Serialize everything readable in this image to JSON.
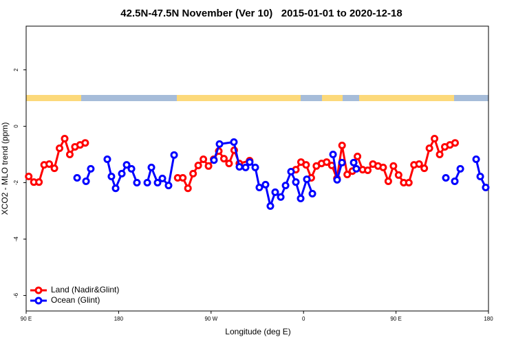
{
  "chart_data": {
    "type": "line",
    "title": "42.5N-47.5N November (Ver 10)   2015-01-01 to 2020-12-18",
    "xlabel": "Longitude (deg E)",
    "ylabel": "XCO2 - MLO trend (ppm)",
    "xlim": [
      90,
      540
    ],
    "ylim": [
      -6.55,
      3.55
    ],
    "xticks": [
      {
        "value": 90,
        "label": "90 E"
      },
      {
        "value": 180,
        "label": "180"
      },
      {
        "value": 270,
        "label": "90 W"
      },
      {
        "value": 360,
        "label": "0"
      },
      {
        "value": 450,
        "label": "90 E"
      },
      {
        "value": 540,
        "label": "180"
      }
    ],
    "yticks": [
      2,
      0,
      -2,
      -4,
      -6
    ],
    "legend": "lower left",
    "series": [
      {
        "name": "Land (Nadir&Glint)",
        "color": "#ff0000",
        "x": [
          92.5,
          97.5,
          102.5,
          107.5,
          112.5,
          117.5,
          122.5,
          127.5,
          132.5,
          137.5,
          142.5,
          147.5,
          null,
          237.5,
          242.5,
          247.5,
          252.5,
          257.5,
          262.5,
          267.5,
          272.5,
          277.5,
          282.5,
          287.5,
          292.5,
          297.5,
          307.5,
          null,
          352.5,
          357.5,
          362.5,
          367.5,
          372.5,
          377.5,
          382.5,
          387.5,
          392.5,
          397.5,
          402.5,
          407.5,
          412.5,
          417.5,
          422.5,
          427.5,
          432.5,
          437.5,
          442.5,
          447.5,
          452.5,
          457.5,
          462.5,
          467.5,
          472.5,
          477.5,
          482.5,
          487.5,
          492.5,
          497.5,
          502.5,
          507.5
        ],
        "values": [
          -1.78,
          -1.98,
          -1.98,
          -1.37,
          -1.34,
          -1.49,
          -0.78,
          -0.44,
          -1.0,
          -0.73,
          -0.66,
          -0.59,
          null,
          -1.83,
          -1.83,
          -2.2,
          -1.68,
          -1.39,
          -1.17,
          -1.41,
          -1.17,
          -0.88,
          -1.15,
          -1.32,
          -0.85,
          -1.32,
          -1.22,
          null,
          -1.54,
          -1.27,
          -1.37,
          -1.83,
          -1.41,
          -1.32,
          -1.27,
          -1.39,
          -1.85,
          -0.68,
          -1.71,
          -1.59,
          -1.07,
          -1.54,
          -1.56,
          -1.34,
          -1.41,
          -1.46,
          -1.95,
          -1.41,
          -1.73,
          -2.0,
          -2.0,
          -1.37,
          -1.34,
          -1.49,
          -0.78,
          -0.44,
          -1.0,
          -0.73,
          -0.66,
          -0.59
        ]
      },
      {
        "name": "Ocean (Glint)",
        "color": "#0000ff",
        "x": [
          139.6,
          null,
          148.3,
          152.9,
          null,
          169.0,
          173.0,
          177.1,
          183.1,
          187.8,
          192.5,
          197.8,
          null,
          207.9,
          211.9,
          217.9,
          222.6,
          228.6,
          234.0,
          null,
          272.8,
          278.2,
          292.2,
          297.6,
          303.6,
          307.6,
          313.0,
          317.0,
          323.0,
          327.7,
          332.4,
          337.8,
          342.5,
          347.8,
          352.5,
          357.2,
          363.2,
          368.6,
          null,
          388.7,
          392.7,
          397.4,
          null,
          408.8,
          411.4,
          null,
          498.5,
          null,
          507.2,
          512.6,
          null,
          528.0,
          532.0,
          537.3
        ],
        "values": [
          -1.83,
          null,
          -1.95,
          -1.51,
          null,
          -1.17,
          -1.78,
          -2.2,
          -1.68,
          -1.37,
          -1.51,
          -2.0,
          null,
          -2.0,
          -1.46,
          -2.0,
          -1.85,
          -2.1,
          -1.02,
          null,
          -1.2,
          -0.63,
          -0.56,
          -1.44,
          -1.46,
          -1.27,
          -1.46,
          -2.17,
          -2.07,
          -2.83,
          -2.34,
          -2.51,
          -2.1,
          -1.61,
          -1.98,
          -2.56,
          -1.88,
          -2.39,
          null,
          -1.0,
          -1.9,
          -1.29,
          null,
          -1.29,
          -1.51,
          null,
          -1.83,
          null,
          -1.95,
          -1.51,
          null,
          -1.17,
          -1.78,
          -2.17
        ]
      }
    ]
  }
}
